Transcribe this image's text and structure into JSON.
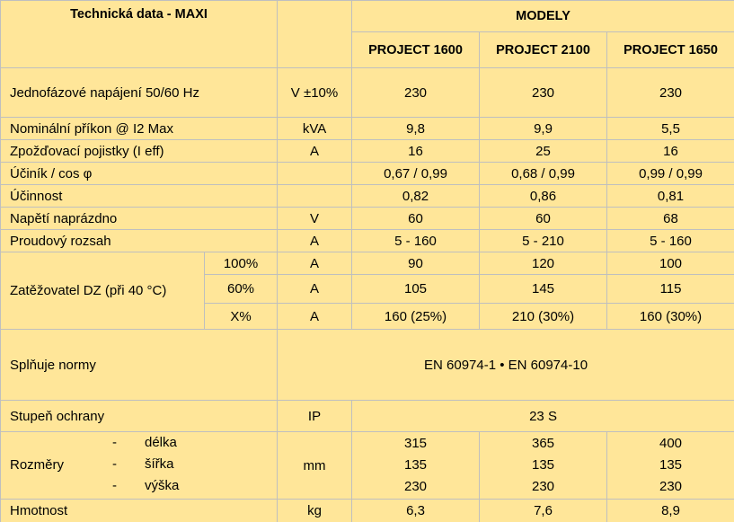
{
  "header": {
    "title": "Technická data - MAXI",
    "group": "MODELY",
    "models": [
      "PROJECT 1600",
      "PROJECT 2100",
      "PROJECT 1650"
    ]
  },
  "rows": [
    {
      "label": "Jednofázové napájení 50/60 Hz",
      "unit": "V ±10%",
      "values": [
        "230",
        "230",
        "230"
      ]
    },
    {
      "label": "Nominální příkon @ I2 Max",
      "unit": "kVA",
      "values": [
        "9,8",
        "9,9",
        "5,5"
      ]
    },
    {
      "label": "Zpožďovací pojistky (I eff)",
      "unit": "A",
      "values": [
        "16",
        "25",
        "16"
      ]
    },
    {
      "label": "Účiník / cos φ",
      "values": [
        "0,67 / 0,99",
        "0,68 / 0,99",
        "0,99 / 0,99"
      ]
    },
    {
      "label": "Účinnost",
      "values": [
        "0,82",
        "0,86",
        "0,81"
      ]
    },
    {
      "label": "Napětí naprázdno",
      "unit": "V",
      "values": [
        "60",
        "60",
        "68"
      ]
    },
    {
      "label": "Proudový rozsah",
      "unit": "A",
      "values": [
        "5 - 160",
        "5 - 210",
        "5 - 160"
      ]
    }
  ],
  "duty_cycle": {
    "label": "Zatěžovatel DZ (při 40 °C)",
    "rows": [
      {
        "sub": "100%",
        "unit": "A",
        "values": [
          "90",
          "120",
          "100"
        ]
      },
      {
        "sub": "60%",
        "unit": "A",
        "values": [
          "105",
          "145",
          "115"
        ]
      },
      {
        "sub": "X%",
        "unit": "A",
        "values": [
          "160 (25%)",
          "210 (30%)",
          "160 (30%)"
        ]
      }
    ]
  },
  "standards": {
    "label": "Splňuje normy",
    "value": "EN 60974-1 • EN 60974-10"
  },
  "protection": {
    "label": "Stupeň ochrany",
    "unit": "IP",
    "value": "23 S"
  },
  "dimensions": {
    "label": "Rozměry",
    "unit": "mm",
    "items": [
      {
        "dash": "-",
        "name": "délka",
        "values": [
          "315",
          "365",
          "400"
        ]
      },
      {
        "dash": "-",
        "name": "šířka",
        "values": [
          "135",
          "135",
          "135"
        ]
      },
      {
        "dash": "-",
        "name": "výška",
        "values": [
          "230",
          "230",
          "230"
        ]
      }
    ]
  },
  "weight": {
    "label": "Hmotnost",
    "unit": "kg",
    "values": [
      "6,3",
      "7,6",
      "8,9"
    ]
  }
}
